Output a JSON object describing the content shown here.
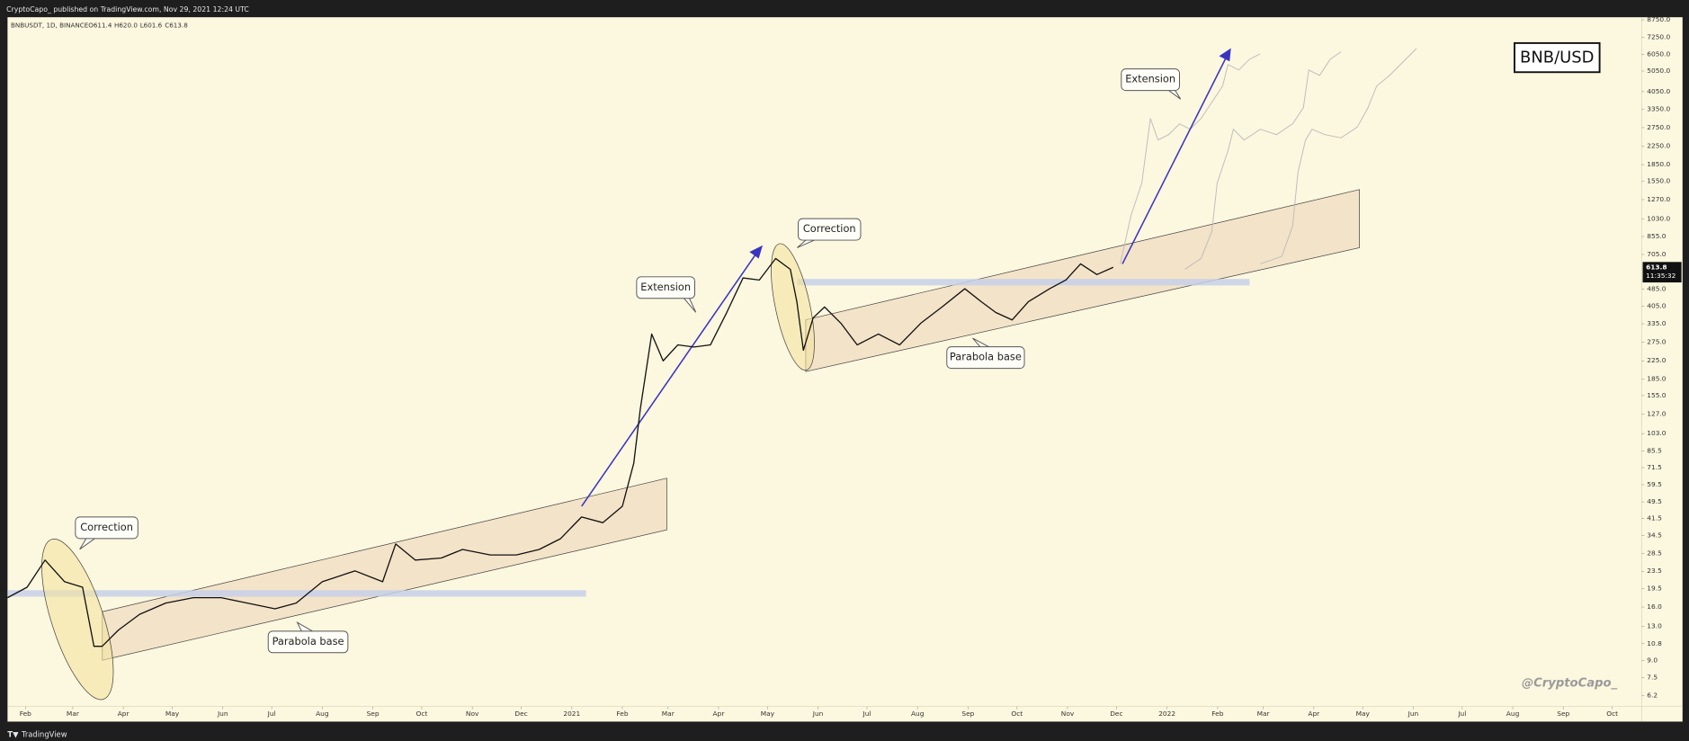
{
  "header": {
    "publisher": "CryptoCapo_ published on TradingView.com, Nov 29, 2021 12:24 UTC",
    "symbol": "BNBUSDT, 1D, BINANCE",
    "ohlc": [
      "O611.4",
      "H620.0",
      "L601.6",
      "C613.8"
    ]
  },
  "chart_data": {
    "type": "line",
    "color": "#111111",
    "log_scale": true,
    "grid": false,
    "x": [
      "2020-01-21",
      "2020-02-02",
      "2020-02-13",
      "2020-02-25",
      "2020-03-07",
      "2020-03-14",
      "2020-03-19",
      "2020-03-29",
      "2020-04-11",
      "2020-04-27",
      "2020-05-14",
      "2020-05-31",
      "2020-06-16",
      "2020-07-03",
      "2020-07-16",
      "2020-08-01",
      "2020-08-21",
      "2020-09-07",
      "2020-09-15",
      "2020-09-27",
      "2020-10-13",
      "2020-10-26",
      "2020-11-12",
      "2020-11-28",
      "2020-12-12",
      "2020-12-25",
      "2021-01-07",
      "2021-01-20",
      "2021-02-01",
      "2021-02-08",
      "2021-02-12",
      "2021-02-19",
      "2021-02-26",
      "2021-03-07",
      "2021-03-17",
      "2021-03-27",
      "2021-04-06",
      "2021-04-16",
      "2021-04-26",
      "2021-05-06",
      "2021-05-15",
      "2021-05-19",
      "2021-05-23",
      "2021-05-29",
      "2021-06-05",
      "2021-06-15",
      "2021-06-25",
      "2021-07-08",
      "2021-07-21",
      "2021-08-03",
      "2021-08-16",
      "2021-08-30",
      "2021-09-09",
      "2021-09-18",
      "2021-09-28",
      "2021-10-08",
      "2021-10-21",
      "2021-10-31",
      "2021-11-09",
      "2021-11-19",
      "2021-11-29"
    ],
    "values": [
      17.7,
      19.8,
      26.5,
      21.0,
      19.8,
      10.5,
      10.5,
      12.5,
      14.8,
      16.7,
      17.7,
      17.7,
      16.7,
      15.7,
      16.7,
      21.0,
      23.6,
      21.0,
      31.5,
      26.5,
      27.1,
      29.7,
      28.0,
      28.0,
      29.7,
      33.3,
      42.1,
      39.6,
      47.2,
      75.0,
      134,
      300,
      225,
      267,
      261,
      267,
      378,
      548,
      536,
      675,
      601,
      425,
      252,
      357,
      401,
      337,
      267,
      300,
      267,
      337,
      401,
      488,
      425,
      378,
      349,
      425,
      488,
      536,
      637,
      568,
      614
    ],
    "xlim": [
      "2020-01-21",
      "2022-10-19"
    ],
    "xticks": [
      {
        "value": "2020-02-01",
        "label": "Feb"
      },
      {
        "value": "2020-03-01",
        "label": "Mar"
      },
      {
        "value": "2020-04-01",
        "label": "Apr"
      },
      {
        "value": "2020-05-01",
        "label": "May"
      },
      {
        "value": "2020-06-01",
        "label": "Jun"
      },
      {
        "value": "2020-07-01",
        "label": "Jul"
      },
      {
        "value": "2020-08-01",
        "label": "Aug"
      },
      {
        "value": "2020-09-01",
        "label": "Sep"
      },
      {
        "value": "2020-10-01",
        "label": "Oct"
      },
      {
        "value": "2020-11-01",
        "label": "Nov"
      },
      {
        "value": "2020-12-01",
        "label": "Dec"
      },
      {
        "value": "2021-01-01",
        "label": "2021"
      },
      {
        "value": "2021-02-01",
        "label": "Feb"
      },
      {
        "value": "2021-03-01",
        "label": "Mar"
      },
      {
        "value": "2021-04-01",
        "label": "Apr"
      },
      {
        "value": "2021-05-01",
        "label": "May"
      },
      {
        "value": "2021-06-01",
        "label": "Jun"
      },
      {
        "value": "2021-07-01",
        "label": "Jul"
      },
      {
        "value": "2021-08-01",
        "label": "Aug"
      },
      {
        "value": "2021-09-01",
        "label": "Sep"
      },
      {
        "value": "2021-10-01",
        "label": "Oct"
      },
      {
        "value": "2021-11-01",
        "label": "Nov"
      },
      {
        "value": "2021-12-01",
        "label": "Dec"
      },
      {
        "value": "2022-01-01",
        "label": "2022"
      },
      {
        "value": "2022-02-01",
        "label": "Feb"
      },
      {
        "value": "2022-03-01",
        "label": "Mar"
      },
      {
        "value": "2022-04-01",
        "label": "Apr"
      },
      {
        "value": "2022-05-01",
        "label": "May"
      },
      {
        "value": "2022-06-01",
        "label": "Jun"
      },
      {
        "value": "2022-07-01",
        "label": "Jul"
      },
      {
        "value": "2022-08-01",
        "label": "Aug"
      },
      {
        "value": "2022-09-01",
        "label": "Sep"
      },
      {
        "value": "2022-10-01",
        "label": "Oct"
      }
    ],
    "ylim": [
      5.5,
      9000
    ],
    "yticks": [
      {
        "value": 8750,
        "label": "8750.0"
      },
      {
        "value": 7250,
        "label": "7250.0"
      },
      {
        "value": 6050,
        "label": "6050.0"
      },
      {
        "value": 5050,
        "label": "5050.0"
      },
      {
        "value": 4050,
        "label": "4050.0"
      },
      {
        "value": 3350,
        "label": "3350.0"
      },
      {
        "value": 2750,
        "label": "2750.0"
      },
      {
        "value": 2250,
        "label": "2250.0"
      },
      {
        "value": 1850,
        "label": "1850.0"
      },
      {
        "value": 1550,
        "label": "1550.0"
      },
      {
        "value": 1270,
        "label": "1270.0"
      },
      {
        "value": 1030,
        "label": "1030.0"
      },
      {
        "value": 855,
        "label": "855.0"
      },
      {
        "value": 705,
        "label": "705.0"
      },
      {
        "value": 485,
        "label": "485.0"
      },
      {
        "value": 405,
        "label": "405.0"
      },
      {
        "value": 335,
        "label": "335.0"
      },
      {
        "value": 275,
        "label": "275.0"
      },
      {
        "value": 225,
        "label": "225.0"
      },
      {
        "value": 185,
        "label": "185.0"
      },
      {
        "value": 155,
        "label": "155.0"
      },
      {
        "value": 127,
        "label": "127.0"
      },
      {
        "value": 103,
        "label": "103.0"
      },
      85.5,
      71.5,
      59.5,
      49.5,
      41.5,
      34.5,
      28.5,
      23.5,
      19.5,
      {
        "value": 16,
        "label": "16.0"
      },
      {
        "value": 13,
        "label": "13.0"
      },
      10.8,
      {
        "value": 9,
        "label": "9.0"
      },
      7.5,
      6.2
    ],
    "last_price": 613.8,
    "countdown": "11:35:32",
    "annotations": [
      "Correction",
      "Parabola base",
      "Extension",
      "Correction",
      "Extension",
      "Parabola base"
    ],
    "symbol_label": "BNB/USD",
    "watermark": "@CryptoCapo_"
  },
  "footer": {
    "brand": "TradingView"
  }
}
